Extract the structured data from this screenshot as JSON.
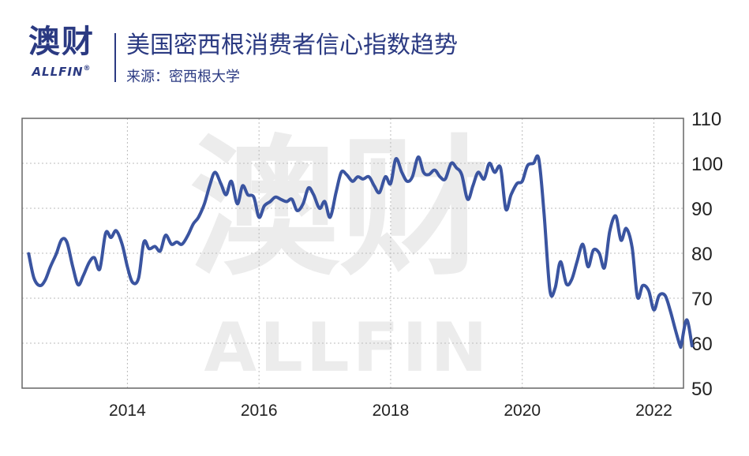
{
  "logo": {
    "cn": "澳财",
    "en": "ALLFIN",
    "reg": "®"
  },
  "header": {
    "title": "美国密西根消费者信心指数趋势",
    "source": "来源：密西根大学"
  },
  "watermark": {
    "cn": "澳财",
    "en": "ALLFIN"
  },
  "colors": {
    "line": "#3a54a0",
    "brand": "#2b3a82",
    "grid": "#bbbbbb",
    "watermark": "#ececec"
  },
  "chart_data": {
    "type": "line",
    "title": "美国密西根消费者信心指数趋势",
    "xlabel": "",
    "ylabel": "",
    "xlim": [
      2012.4,
      2022.45
    ],
    "ylim": [
      50,
      110
    ],
    "x_ticks": [
      2014,
      2016,
      2018,
      2020,
      2022
    ],
    "y_ticks": [
      50,
      60,
      70,
      80,
      90,
      100,
      110
    ],
    "y_axis_side": "right",
    "grid": "dotted",
    "series": [
      {
        "values": [
          [
            2012.5,
            79.9
          ],
          [
            2012.58,
            74.5
          ],
          [
            2012.67,
            72.8
          ],
          [
            2012.75,
            74.0
          ],
          [
            2012.83,
            77.0
          ],
          [
            2012.92,
            79.9
          ],
          [
            2013.0,
            83.0
          ],
          [
            2013.08,
            82.5
          ],
          [
            2013.17,
            77.0
          ],
          [
            2013.25,
            73.0
          ],
          [
            2013.33,
            75.0
          ],
          [
            2013.42,
            78.0
          ],
          [
            2013.5,
            79.0
          ],
          [
            2013.58,
            76.5
          ],
          [
            2013.67,
            84.5
          ],
          [
            2013.75,
            83.5
          ],
          [
            2013.83,
            85.0
          ],
          [
            2013.92,
            82.0
          ],
          [
            2014.0,
            77.0
          ],
          [
            2014.08,
            73.5
          ],
          [
            2014.17,
            74.5
          ],
          [
            2014.25,
            82.5
          ],
          [
            2014.33,
            81.0
          ],
          [
            2014.42,
            81.5
          ],
          [
            2014.5,
            80.5
          ],
          [
            2014.58,
            84.0
          ],
          [
            2014.67,
            82.0
          ],
          [
            2014.75,
            82.5
          ],
          [
            2014.83,
            82.0
          ],
          [
            2014.92,
            84.0
          ],
          [
            2015.0,
            86.5
          ],
          [
            2015.08,
            88.0
          ],
          [
            2015.17,
            91.0
          ],
          [
            2015.25,
            95.0
          ],
          [
            2015.33,
            98.0
          ],
          [
            2015.42,
            95.5
          ],
          [
            2015.5,
            93.0
          ],
          [
            2015.58,
            96.0
          ],
          [
            2015.67,
            91.0
          ],
          [
            2015.75,
            95.0
          ],
          [
            2015.83,
            93.0
          ],
          [
            2015.92,
            92.5
          ],
          [
            2016.0,
            88.0
          ],
          [
            2016.08,
            90.5
          ],
          [
            2016.17,
            91.5
          ],
          [
            2016.25,
            92.5
          ],
          [
            2016.33,
            92.0
          ],
          [
            2016.42,
            91.5
          ],
          [
            2016.5,
            92.0
          ],
          [
            2016.58,
            89.5
          ],
          [
            2016.67,
            91.0
          ],
          [
            2016.75,
            94.5
          ],
          [
            2016.83,
            93.0
          ],
          [
            2016.92,
            90.0
          ],
          [
            2017.0,
            91.5
          ],
          [
            2017.08,
            88.0
          ],
          [
            2017.17,
            93.5
          ],
          [
            2017.25,
            98.0
          ],
          [
            2017.33,
            97.5
          ],
          [
            2017.42,
            96.0
          ],
          [
            2017.5,
            97.0
          ],
          [
            2017.58,
            96.5
          ],
          [
            2017.67,
            97.0
          ],
          [
            2017.75,
            95.0
          ],
          [
            2017.83,
            93.5
          ],
          [
            2017.92,
            97.0
          ],
          [
            2018.0,
            95.5
          ],
          [
            2018.08,
            101.0
          ],
          [
            2018.17,
            98.0
          ],
          [
            2018.25,
            96.0
          ],
          [
            2018.33,
            97.0
          ],
          [
            2018.42,
            101.4
          ],
          [
            2018.5,
            98.0
          ],
          [
            2018.58,
            97.5
          ],
          [
            2018.67,
            98.5
          ],
          [
            2018.75,
            97.0
          ],
          [
            2018.83,
            96.5
          ],
          [
            2018.92,
            100.0
          ],
          [
            2019.0,
            99.0
          ],
          [
            2019.08,
            97.5
          ],
          [
            2019.17,
            92.0
          ],
          [
            2019.25,
            95.0
          ],
          [
            2019.33,
            98.0
          ],
          [
            2019.42,
            96.5
          ],
          [
            2019.5,
            100.0
          ],
          [
            2019.58,
            98.0
          ],
          [
            2019.67,
            99.0
          ],
          [
            2019.75,
            89.8
          ],
          [
            2019.83,
            93.0
          ],
          [
            2019.92,
            95.5
          ],
          [
            2020.0,
            96.0
          ],
          [
            2020.08,
            99.5
          ],
          [
            2020.17,
            100.0
          ],
          [
            2020.25,
            101.0
          ],
          [
            2020.33,
            89.1
          ],
          [
            2020.42,
            71.8
          ],
          [
            2020.5,
            72.3
          ],
          [
            2020.58,
            78.1
          ],
          [
            2020.67,
            73.2
          ],
          [
            2020.75,
            74.1
          ],
          [
            2020.83,
            78.0
          ],
          [
            2020.92,
            82.0
          ],
          [
            2021.0,
            77.0
          ],
          [
            2021.08,
            80.7
          ],
          [
            2021.17,
            80.0
          ],
          [
            2021.25,
            76.8
          ],
          [
            2021.33,
            84.9
          ],
          [
            2021.42,
            88.3
          ],
          [
            2021.5,
            82.9
          ],
          [
            2021.58,
            85.5
          ],
          [
            2021.67,
            81.2
          ],
          [
            2021.75,
            70.3
          ],
          [
            2021.83,
            72.8
          ],
          [
            2021.92,
            71.7
          ],
          [
            2022.0,
            67.4
          ],
          [
            2022.08,
            70.6
          ],
          [
            2022.17,
            70.6
          ],
          [
            2022.25,
            67.2
          ],
          [
            2022.33,
            62.8
          ],
          [
            2022.4,
            59.4
          ],
          [
            2022.42,
            59.9
          ],
          [
            2022.5,
            65.2
          ],
          [
            2022.58,
            59.4
          ]
        ]
      }
    ]
  }
}
